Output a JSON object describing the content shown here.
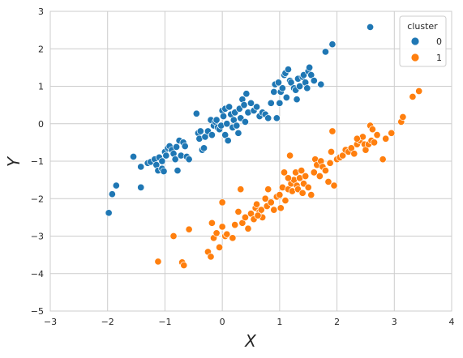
{
  "chart_data": {
    "type": "scatter",
    "title": "",
    "xlabel": "X",
    "ylabel": "Y",
    "xlim": [
      -3,
      4
    ],
    "ylim": [
      -5,
      3
    ],
    "xticks": [
      -3,
      -2,
      -1,
      0,
      1,
      2,
      3,
      4
    ],
    "yticks": [
      -5,
      -4,
      -3,
      -2,
      -1,
      0,
      1,
      2,
      3
    ],
    "grid": true,
    "legend": {
      "title": "cluster",
      "placement": "top-right"
    },
    "series": [
      {
        "name": "0",
        "color": "#1f77b4",
        "points": [
          [
            -1.98,
            -2.38
          ],
          [
            -1.92,
            -1.88
          ],
          [
            -1.85,
            -1.65
          ],
          [
            -1.55,
            -0.88
          ],
          [
            -1.42,
            -1.7
          ],
          [
            -1.42,
            -1.15
          ],
          [
            -1.3,
            -1.05
          ],
          [
            -1.25,
            -1.02
          ],
          [
            -1.18,
            -0.95
          ],
          [
            -1.15,
            -1.1
          ],
          [
            -1.12,
            -1.25
          ],
          [
            -1.1,
            -0.9
          ],
          [
            -1.05,
            -1.0
          ],
          [
            -1.05,
            -1.2
          ],
          [
            -1.02,
            -1.27
          ],
          [
            -1.0,
            -0.75
          ],
          [
            -0.98,
            -0.85
          ],
          [
            -0.95,
            -0.65
          ],
          [
            -0.92,
            -0.6
          ],
          [
            -0.88,
            -0.7
          ],
          [
            -0.85,
            -0.8
          ],
          [
            -0.82,
            -0.95
          ],
          [
            -0.8,
            -0.62
          ],
          [
            -0.78,
            -1.25
          ],
          [
            -0.75,
            -0.45
          ],
          [
            -0.72,
            -0.85
          ],
          [
            -0.68,
            -0.5
          ],
          [
            -0.65,
            -0.6
          ],
          [
            -0.62,
            -0.88
          ],
          [
            -0.58,
            -0.95
          ],
          [
            -0.45,
            0.27
          ],
          [
            -0.42,
            -0.25
          ],
          [
            -0.4,
            -0.4
          ],
          [
            -0.38,
            -0.2
          ],
          [
            -0.35,
            -0.7
          ],
          [
            -0.32,
            -0.65
          ],
          [
            -0.3,
            -0.35
          ],
          [
            -0.25,
            -0.2
          ],
          [
            -0.2,
            0.1
          ],
          [
            -0.18,
            -0.3
          ],
          [
            -0.15,
            -0.05
          ],
          [
            -0.12,
            0.05
          ],
          [
            -0.1,
            0.1
          ],
          [
            -0.08,
            -0.1
          ],
          [
            -0.05,
            -0.15
          ],
          [
            -0.02,
            -0.05
          ],
          [
            0.0,
            0.35
          ],
          [
            0.02,
            0.2
          ],
          [
            0.05,
            -0.3
          ],
          [
            0.05,
            0.4
          ],
          [
            0.08,
            0.0
          ],
          [
            0.1,
            -0.45
          ],
          [
            0.12,
            0.45
          ],
          [
            0.15,
            0.25
          ],
          [
            0.18,
            -0.1
          ],
          [
            0.2,
            0.1
          ],
          [
            0.22,
            0.3
          ],
          [
            0.25,
            -0.05
          ],
          [
            0.28,
            -0.25
          ],
          [
            0.3,
            0.4
          ],
          [
            0.32,
            0.15
          ],
          [
            0.35,
            0.65
          ],
          [
            0.38,
            0.5
          ],
          [
            0.4,
            0.05
          ],
          [
            0.42,
            0.8
          ],
          [
            0.45,
            0.3
          ],
          [
            0.5,
            0.55
          ],
          [
            0.55,
            0.35
          ],
          [
            0.6,
            0.45
          ],
          [
            0.65,
            0.2
          ],
          [
            0.7,
            0.3
          ],
          [
            0.75,
            0.25
          ],
          [
            0.8,
            0.15
          ],
          [
            0.85,
            0.55
          ],
          [
            0.9,
            0.85
          ],
          [
            0.92,
            1.05
          ],
          [
            0.95,
            0.15
          ],
          [
            0.98,
            1.1
          ],
          [
            1.0,
            0.55
          ],
          [
            1.02,
            0.85
          ],
          [
            1.05,
            0.95
          ],
          [
            1.08,
            1.3
          ],
          [
            1.1,
            1.35
          ],
          [
            1.12,
            0.7
          ],
          [
            1.15,
            1.45
          ],
          [
            1.18,
            1.15
          ],
          [
            1.2,
            1.1
          ],
          [
            1.25,
            0.95
          ],
          [
            1.28,
            0.9
          ],
          [
            1.3,
            0.65
          ],
          [
            1.32,
            1.2
          ],
          [
            1.35,
            1.0
          ],
          [
            1.4,
            1.25
          ],
          [
            1.42,
            1.3
          ],
          [
            1.45,
            1.1
          ],
          [
            1.48,
            0.95
          ],
          [
            1.5,
            1.4
          ],
          [
            1.52,
            1.5
          ],
          [
            1.55,
            1.3
          ],
          [
            1.6,
            1.15
          ],
          [
            1.72,
            1.05
          ],
          [
            1.8,
            1.92
          ],
          [
            1.92,
            2.12
          ],
          [
            2.58,
            2.58
          ]
        ]
      },
      {
        "name": "1",
        "color": "#ff7f0e",
        "points": [
          [
            -1.12,
            -3.68
          ],
          [
            -0.85,
            -3.0
          ],
          [
            -0.7,
            -3.7
          ],
          [
            -0.67,
            -3.78
          ],
          [
            -0.58,
            -2.82
          ],
          [
            -0.25,
            -3.42
          ],
          [
            -0.2,
            -3.55
          ],
          [
            -0.18,
            -2.65
          ],
          [
            -0.15,
            -3.05
          ],
          [
            -0.1,
            -2.92
          ],
          [
            0.0,
            -2.1
          ],
          [
            0.0,
            -2.75
          ],
          [
            0.05,
            -3.0
          ],
          [
            0.08,
            -2.95
          ],
          [
            0.18,
            -3.05
          ],
          [
            0.22,
            -2.7
          ],
          [
            0.28,
            -2.35
          ],
          [
            0.32,
            -1.75
          ],
          [
            0.35,
            -2.65
          ],
          [
            0.4,
            -2.5
          ],
          [
            0.45,
            -2.8
          ],
          [
            0.5,
            -2.4
          ],
          [
            0.55,
            -2.55
          ],
          [
            0.58,
            -2.25
          ],
          [
            0.6,
            -2.15
          ],
          [
            0.65,
            -2.35
          ],
          [
            0.68,
            -2.3
          ],
          [
            0.7,
            -2.5
          ],
          [
            0.75,
            -2.0
          ],
          [
            0.78,
            -2.2
          ],
          [
            0.8,
            -1.75
          ],
          [
            0.85,
            -2.1
          ],
          [
            0.9,
            -2.3
          ],
          [
            0.95,
            -1.95
          ],
          [
            1.0,
            -1.9
          ],
          [
            1.02,
            -2.25
          ],
          [
            1.05,
            -1.7
          ],
          [
            1.08,
            -1.3
          ],
          [
            1.1,
            -2.05
          ],
          [
            1.15,
            -1.75
          ],
          [
            1.18,
            -0.85
          ],
          [
            1.2,
            -1.6
          ],
          [
            1.22,
            -1.8
          ],
          [
            1.25,
            -1.5
          ],
          [
            1.28,
            -1.3
          ],
          [
            1.3,
            -1.65
          ],
          [
            1.32,
            -1.75
          ],
          [
            1.35,
            -1.45
          ],
          [
            1.38,
            -1.25
          ],
          [
            1.4,
            -1.85
          ],
          [
            1.42,
            -1.6
          ],
          [
            1.45,
            -1.4
          ],
          [
            1.5,
            -1.7
          ],
          [
            1.55,
            -1.9
          ],
          [
            1.6,
            -1.3
          ],
          [
            1.62,
            -0.95
          ],
          [
            1.65,
            -1.1
          ],
          [
            1.7,
            -1.4
          ],
          [
            1.72,
            -1.0
          ],
          [
            1.75,
            -1.15
          ],
          [
            1.8,
            -1.25
          ],
          [
            1.85,
            -1.55
          ],
          [
            1.88,
            -1.05
          ],
          [
            1.9,
            -0.75
          ],
          [
            1.92,
            -0.2
          ],
          [
            1.95,
            -1.65
          ],
          [
            2.0,
            -0.95
          ],
          [
            2.05,
            -0.9
          ],
          [
            2.1,
            -0.85
          ],
          [
            2.15,
            -0.7
          ],
          [
            2.2,
            -0.75
          ],
          [
            2.25,
            -0.65
          ],
          [
            2.3,
            -0.8
          ],
          [
            2.35,
            -0.55
          ],
          [
            2.4,
            -0.45
          ],
          [
            2.45,
            -0.35
          ],
          [
            2.48,
            -0.55
          ],
          [
            2.5,
            -0.7
          ],
          [
            2.55,
            -0.55
          ],
          [
            2.58,
            -0.05
          ],
          [
            2.6,
            -0.45
          ],
          [
            2.62,
            -0.15
          ],
          [
            2.65,
            -0.5
          ],
          [
            2.7,
            -0.3
          ],
          [
            2.8,
            -0.95
          ],
          [
            2.85,
            -0.4
          ],
          [
            2.95,
            -0.25
          ],
          [
            3.12,
            0.05
          ],
          [
            3.15,
            0.18
          ],
          [
            3.32,
            0.72
          ],
          [
            3.43,
            0.87
          ],
          [
            2.35,
            -0.4
          ],
          [
            1.15,
            -1.45
          ],
          [
            0.62,
            -2.45
          ],
          [
            -0.05,
            -3.3
          ]
        ]
      }
    ]
  }
}
